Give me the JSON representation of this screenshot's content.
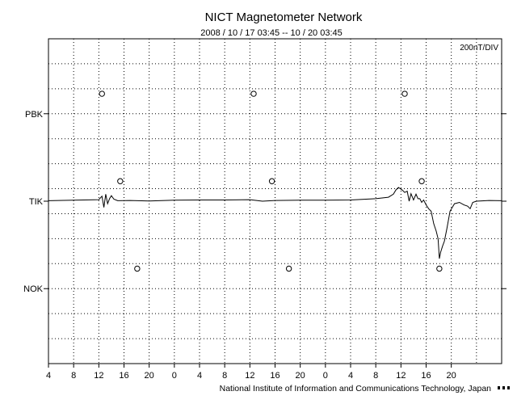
{
  "chart_data": {
    "type": "line",
    "title": "NICT Magnetometer Network",
    "subtitle": "2008 / 10 / 17   03:45 -- 10 / 20   03:45",
    "scale_label": "200nT/DIV",
    "footer": "National Institute of Information and Communications Technology, Japan",
    "xlim": [
      4,
      76
    ],
    "x_tick_labels": [
      "4",
      "8",
      "12",
      "16",
      "20",
      "0",
      "4",
      "8",
      "12",
      "16",
      "20",
      "0",
      "4",
      "8",
      "12",
      "16",
      "20"
    ],
    "ylim": [
      0,
      13
    ],
    "grid": true,
    "stations": [
      {
        "name": "PBK",
        "offset": 10
      },
      {
        "name": "TIK",
        "offset": 6.5
      },
      {
        "name": "NOK",
        "offset": 3
      }
    ],
    "markers": [
      {
        "x": 12.5,
        "y": 10.8
      },
      {
        "x": 36.6,
        "y": 10.8
      },
      {
        "x": 60.6,
        "y": 10.8
      },
      {
        "x": 15.4,
        "y": 7.3
      },
      {
        "x": 39.5,
        "y": 7.3
      },
      {
        "x": 63.3,
        "y": 7.3
      },
      {
        "x": 18.1,
        "y": 3.8
      },
      {
        "x": 42.2,
        "y": 3.8
      },
      {
        "x": 66.1,
        "y": 3.8
      }
    ],
    "series": [
      {
        "name": "TIK",
        "x": [
          4,
          8,
          12,
          12.5,
          12.8,
          13.1,
          13.4,
          13.7,
          14.0,
          14.4,
          15,
          17,
          20,
          24,
          28,
          32,
          36,
          38,
          40,
          44,
          48,
          52,
          56,
          58,
          58.8,
          59.2,
          59.6,
          60.2,
          60.6,
          61.0,
          61.3,
          61.6,
          62.0,
          62.4,
          62.7,
          63.0,
          63.3,
          63.6,
          64.0,
          64.4,
          64.8,
          65.2,
          65.6,
          65.9,
          66.1,
          66.3,
          66.6,
          66.9,
          67.3,
          67.8,
          68.5,
          69.3,
          70.0,
          70.6,
          71.0,
          71.4,
          72,
          74,
          76
        ],
        "y": [
          6.52,
          6.54,
          6.56,
          6.7,
          6.25,
          6.78,
          6.4,
          6.6,
          6.72,
          6.58,
          6.52,
          6.53,
          6.51,
          6.54,
          6.55,
          6.55,
          6.56,
          6.5,
          6.53,
          6.54,
          6.54,
          6.55,
          6.6,
          6.66,
          6.78,
          6.95,
          7.05,
          6.95,
          6.85,
          6.9,
          6.5,
          6.8,
          6.55,
          6.78,
          6.6,
          6.6,
          6.45,
          6.55,
          6.35,
          6.2,
          6.1,
          5.6,
          5.3,
          5.0,
          4.2,
          4.45,
          4.7,
          4.9,
          5.4,
          6.1,
          6.4,
          6.45,
          6.35,
          6.3,
          6.2,
          6.45,
          6.5,
          6.53,
          6.52
        ]
      }
    ]
  }
}
